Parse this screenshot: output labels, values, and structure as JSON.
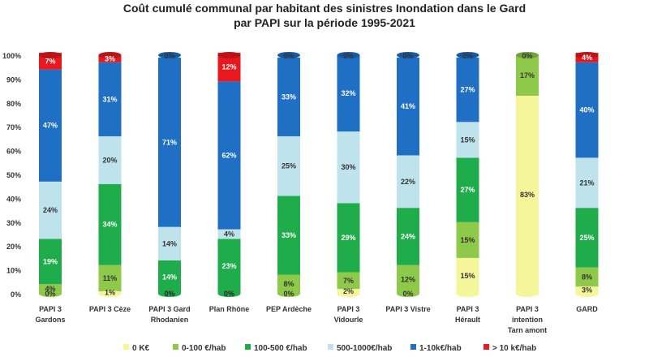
{
  "chart_data": {
    "type": "bar",
    "stacked": true,
    "percent_stacked": true,
    "title": "Coût cumulé communal par habitant des sinistres Inondation dans le Gard",
    "subtitle": "par PAPI sur la période 1995-2021",
    "xlabel": "",
    "ylabel": "",
    "ylim": [
      0,
      100
    ],
    "yticks": [
      "0%",
      "10%",
      "20%",
      "30%",
      "40%",
      "50%",
      "60%",
      "70%",
      "80%",
      "90%",
      "100%"
    ],
    "grid": false,
    "legend_position": "bottom",
    "categories": [
      [
        "PAPI 3",
        "Gardons"
      ],
      [
        "PAPI 3 Cèze"
      ],
      [
        "PAPI 3 Gard",
        "Rhodanien"
      ],
      [
        "Plan Rhône"
      ],
      [
        "PEP Ardèche"
      ],
      [
        "PAPI 3",
        "Vidourle"
      ],
      [
        "PAPI 3 Vistre"
      ],
      [
        "PAPI 3",
        "Hérault"
      ],
      [
        "PAPI 3",
        "intention",
        "Tarn amont"
      ],
      [
        "GARD"
      ]
    ],
    "series": [
      {
        "name": "0 K€",
        "color": "#f5f59a",
        "values": [
          0,
          1,
          0,
          0,
          0,
          2,
          0,
          15,
          83,
          3
        ],
        "labels": [
          "0%",
          "1%",
          "0%",
          "0%",
          "0%",
          "2%",
          "0%",
          "15%",
          "83%",
          "3%"
        ]
      },
      {
        "name": "0-100 €/hab",
        "color": "#8fc94a",
        "values": [
          4,
          11,
          0,
          0,
          8,
          7,
          12,
          15,
          17,
          8
        ],
        "labels": [
          "4%",
          "11%",
          "0%",
          "0%",
          "8%",
          "7%",
          "12%",
          "15%",
          "17%",
          "8%"
        ]
      },
      {
        "name": "100-500 €/hab",
        "color": "#1fac4a",
        "values": [
          19,
          34,
          14,
          23,
          33,
          29,
          24,
          27,
          0,
          25
        ],
        "labels": [
          "19%",
          "34%",
          "14%",
          "23%",
          "33%",
          "29%",
          "24%",
          "27%",
          "",
          "25%"
        ]
      },
      {
        "name": "500-1000€/hab",
        "color": "#bfe3ec",
        "values": [
          24,
          20,
          14,
          4,
          25,
          30,
          22,
          15,
          0,
          21
        ],
        "labels": [
          "24%",
          "20%",
          "14%",
          "4%",
          "25%",
          "30%",
          "22%",
          "15%",
          "",
          "21%"
        ]
      },
      {
        "name": "1-10k€/hab",
        "color": "#1f6fc4",
        "values": [
          47,
          31,
          71,
          62,
          33,
          32,
          41,
          27,
          0,
          40
        ],
        "labels": [
          "47%",
          "31%",
          "71%",
          "62%",
          "33%",
          "32%",
          "41%",
          "27%",
          "",
          "40%"
        ]
      },
      {
        "name": "> 10 k€/hab",
        "color": "#e8181e",
        "values": [
          7,
          3,
          0,
          12,
          0,
          0,
          0,
          0,
          0,
          4
        ],
        "labels": [
          "7%",
          "3%",
          "0%",
          "12%",
          "0%",
          "0%",
          "0%",
          "0%",
          "0%",
          "4%"
        ]
      }
    ]
  }
}
